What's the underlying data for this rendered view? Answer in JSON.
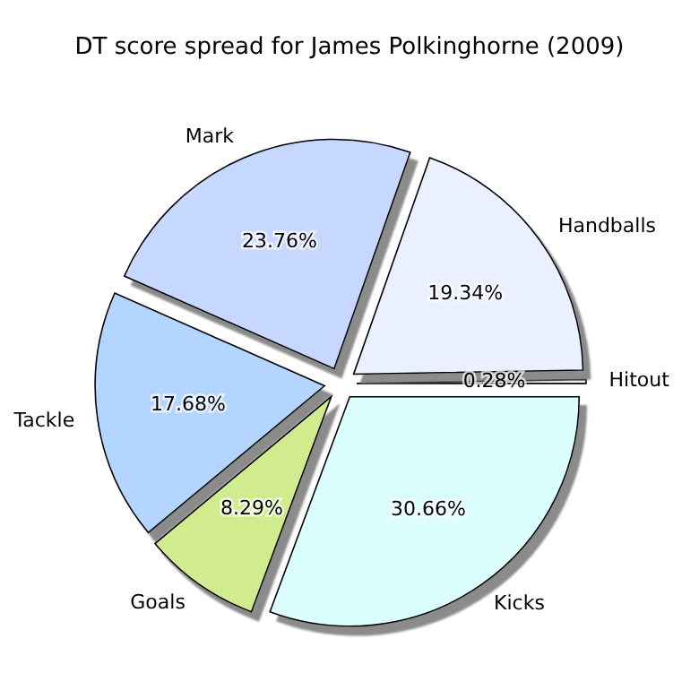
{
  "chart_data": {
    "type": "pie",
    "title": "DT score spread for James Polkinghorne (2009)",
    "categories": [
      "Hitout",
      "Handballs",
      "Mark",
      "Tackle",
      "Goals",
      "Kicks"
    ],
    "values": [
      0.28,
      19.34,
      23.76,
      17.68,
      8.29,
      30.66
    ],
    "value_labels": [
      "0.28%",
      "19.34%",
      "23.76%",
      "17.68%",
      "8.29%",
      "30.66%"
    ],
    "colors": [
      "#f4f8ff",
      "#eaf0ff",
      "#c6d8ff",
      "#b3d5ff",
      "#d1ec8e",
      "#dbffff"
    ]
  }
}
